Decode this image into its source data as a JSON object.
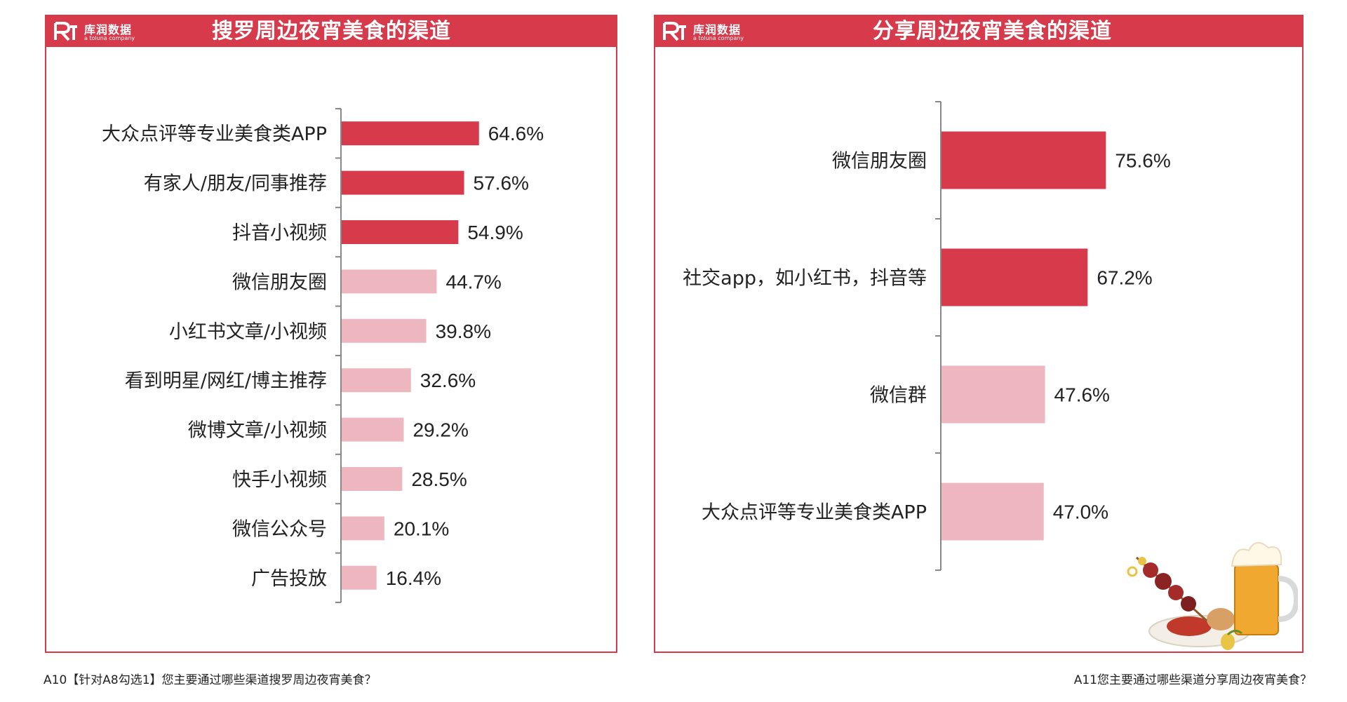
{
  "left_panel": {
    "brand_name": "库润数据",
    "brand_sub": "a toluna company",
    "title": "搜罗周边夜宵美食的渠道",
    "footnote": "A10【针对A8勾选1】您主要通过哪些渠道搜罗周边夜宵美食？"
  },
  "right_panel": {
    "brand_name": "库润数据",
    "brand_sub": "a toluna company",
    "title": "分享周边夜宵美食的渠道",
    "footnote": "A11您主要通过哪些渠道分享周边夜宵美食？"
  },
  "colors": {
    "accent": "#d63a4b",
    "bar_highlight": "#d63a4b",
    "bar_normal": "#eeb7c0"
  },
  "chart_data": [
    {
      "type": "bar",
      "orientation": "horizontal",
      "title": "搜罗周边夜宵美食的渠道",
      "categories": [
        "大众点评等专业美食类APP",
        "有家人/朋友/同事推荐",
        "抖音小视频",
        "微信朋友圈",
        "小红书文章/小视频",
        "看到明星/网红/博主推荐",
        "微博文章/小视频",
        "快手小视频",
        "微信公众号",
        "广告投放"
      ],
      "values": [
        64.6,
        57.6,
        54.9,
        44.7,
        39.8,
        32.6,
        29.2,
        28.5,
        20.1,
        16.4
      ],
      "value_labels": [
        "64.6%",
        "57.6%",
        "54.9%",
        "44.7%",
        "39.8%",
        "32.6%",
        "29.2%",
        "28.5%",
        "20.1%",
        "16.4%"
      ],
      "highlighted": [
        true,
        true,
        true,
        false,
        false,
        false,
        false,
        false,
        false,
        false
      ],
      "unit": "%"
    },
    {
      "type": "bar",
      "orientation": "horizontal",
      "title": "分享周边夜宵美食的渠道",
      "categories": [
        "微信朋友圈",
        "社交app，如小红书，抖音等",
        "微信群",
        "大众点评等专业美食类APP"
      ],
      "values": [
        75.6,
        67.2,
        47.6,
        47.0
      ],
      "value_labels": [
        "75.6%",
        "67.2%",
        "47.6%",
        "47.0%"
      ],
      "highlighted": [
        true,
        true,
        false,
        false
      ],
      "unit": "%"
    }
  ]
}
